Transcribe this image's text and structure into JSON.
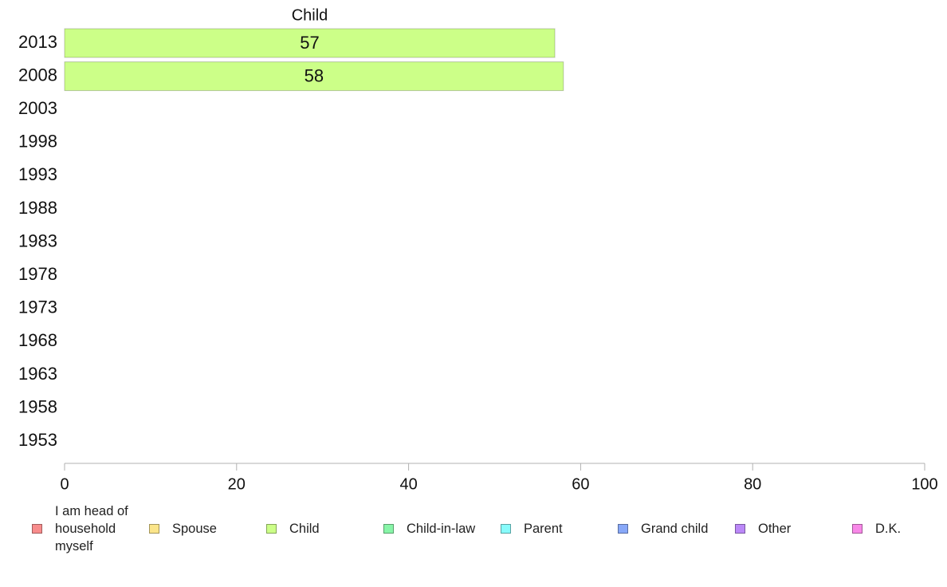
{
  "chart_data": {
    "type": "bar",
    "orientation": "horizontal",
    "stacked": true,
    "categories": [
      "2013",
      "2008",
      "2003",
      "1998",
      "1993",
      "1988",
      "1983",
      "1978",
      "1973",
      "1968",
      "1963",
      "1958",
      "1953"
    ],
    "series": [
      {
        "name": "I am head of household myself",
        "color": "#f88c8c",
        "values": [
          null,
          null,
          null,
          null,
          null,
          null,
          null,
          null,
          null,
          null,
          null,
          null,
          null
        ]
      },
      {
        "name": "Spouse",
        "color": "#fbe58a",
        "values": [
          null,
          null,
          null,
          null,
          null,
          null,
          null,
          null,
          null,
          null,
          null,
          null,
          null
        ]
      },
      {
        "name": "Child",
        "color": "#ccff88",
        "values": [
          57,
          58,
          null,
          null,
          null,
          null,
          null,
          null,
          null,
          null,
          null,
          null,
          null
        ]
      },
      {
        "name": "Child-in-law",
        "color": "#88f5a8",
        "values": [
          null,
          null,
          null,
          null,
          null,
          null,
          null,
          null,
          null,
          null,
          null,
          null,
          null
        ]
      },
      {
        "name": "Parent",
        "color": "#88fbfb",
        "values": [
          null,
          null,
          null,
          null,
          null,
          null,
          null,
          null,
          null,
          null,
          null,
          null,
          null
        ]
      },
      {
        "name": "Grand child",
        "color": "#88a8f8",
        "values": [
          null,
          null,
          null,
          null,
          null,
          null,
          null,
          null,
          null,
          null,
          null,
          null,
          null
        ]
      },
      {
        "name": "Other",
        "color": "#bb88f8",
        "values": [
          null,
          null,
          null,
          null,
          null,
          null,
          null,
          null,
          null,
          null,
          null,
          null,
          null
        ]
      },
      {
        "name": "D.K.",
        "color": "#f888e8",
        "values": [
          null,
          null,
          null,
          null,
          null,
          null,
          null,
          null,
          null,
          null,
          null,
          null,
          null
        ]
      }
    ],
    "segment_header": "Child",
    "xlim": [
      0,
      100
    ],
    "xticks": [
      0,
      20,
      40,
      60,
      80,
      100
    ],
    "legend_position": "bottom",
    "grid": false
  }
}
